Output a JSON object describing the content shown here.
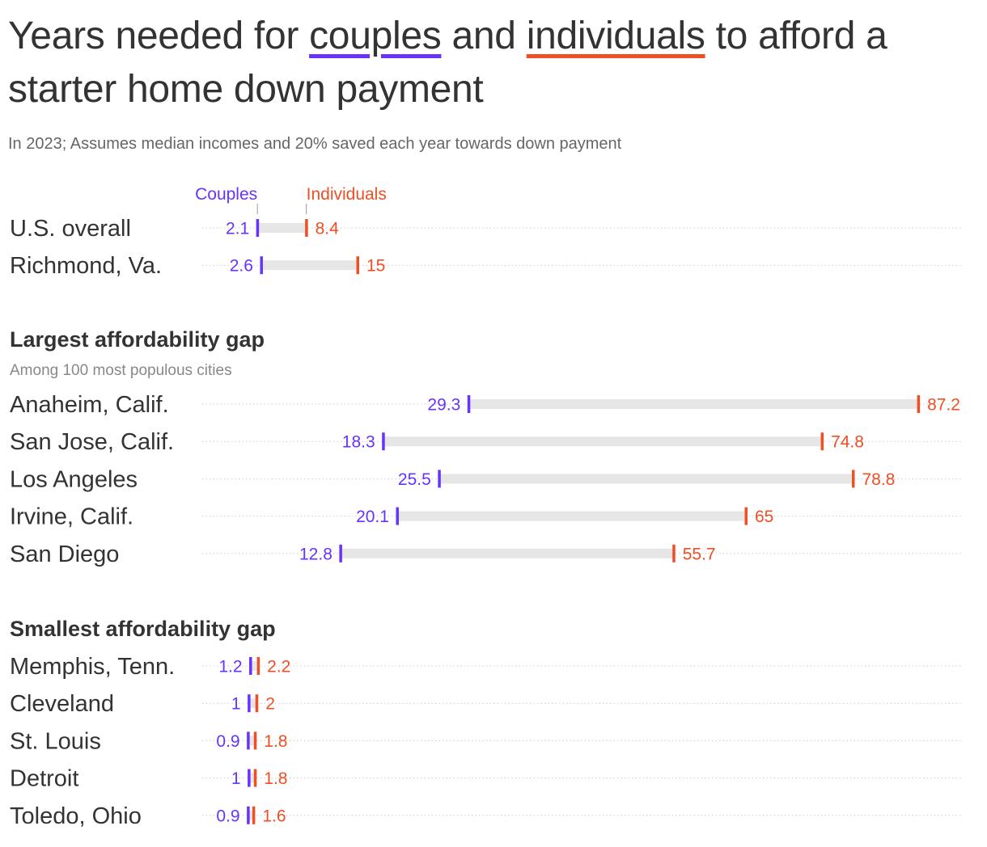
{
  "title": {
    "part1": "Years needed for ",
    "couples_word": "couples",
    "part2": " and ",
    "individuals_word": "individuals",
    "part3": " to afford a starter home down payment"
  },
  "subtitle": "In 2023; Assumes median incomes and 20% saved each year towards down payment",
  "colors": {
    "couples": "#6633ff",
    "individuals": "#f04e23",
    "bar": "#e6e6e6",
    "grid": "#cccccc"
  },
  "chart_data": {
    "type": "dumbbell",
    "legend": {
      "couples": "Couples",
      "individuals": "Individuals"
    },
    "xlim": [
      0,
      87.2
    ],
    "grid": "dotted row lines",
    "groups": [
      {
        "id": "overall",
        "title": "",
        "subtitle": "",
        "rows": [
          {
            "label": "U.S. overall",
            "couples": 2.1,
            "individuals": 8.4,
            "couples_text": "2.1",
            "individuals_text": "8.4"
          },
          {
            "label": "Richmond, Va.",
            "couples": 2.6,
            "individuals": 15,
            "couples_text": "2.6",
            "individuals_text": "15"
          }
        ]
      },
      {
        "id": "largest",
        "title": "Largest affordability gap",
        "subtitle": "Among 100 most populous cities",
        "rows": [
          {
            "label": "Anaheim, Calif.",
            "couples": 29.3,
            "individuals": 87.2,
            "couples_text": "29.3",
            "individuals_text": "87.2"
          },
          {
            "label": "San Jose, Calif.",
            "couples": 18.3,
            "individuals": 74.8,
            "couples_text": "18.3",
            "individuals_text": "74.8"
          },
          {
            "label": "Los Angeles",
            "couples": 25.5,
            "individuals": 78.8,
            "couples_text": "25.5",
            "individuals_text": "78.8"
          },
          {
            "label": "Irvine, Calif.",
            "couples": 20.1,
            "individuals": 65,
            "couples_text": "20.1",
            "individuals_text": "65"
          },
          {
            "label": "San Diego",
            "couples": 12.8,
            "individuals": 55.7,
            "couples_text": "12.8",
            "individuals_text": "55.7"
          }
        ]
      },
      {
        "id": "smallest",
        "title": "Smallest affordability gap",
        "subtitle": "",
        "rows": [
          {
            "label": "Memphis, Tenn.",
            "couples": 1.2,
            "individuals": 2.2,
            "couples_text": "1.2",
            "individuals_text": "2.2"
          },
          {
            "label": "Cleveland",
            "couples": 1,
            "individuals": 2,
            "couples_text": "1",
            "individuals_text": "2"
          },
          {
            "label": "St. Louis",
            "couples": 0.9,
            "individuals": 1.8,
            "couples_text": "0.9",
            "individuals_text": "1.8"
          },
          {
            "label": "Detroit",
            "couples": 1,
            "individuals": 1.8,
            "couples_text": "1",
            "individuals_text": "1.8"
          },
          {
            "label": "Toledo, Ohio",
            "couples": 0.9,
            "individuals": 1.6,
            "couples_text": "0.9",
            "individuals_text": "1.6"
          }
        ]
      }
    ]
  }
}
